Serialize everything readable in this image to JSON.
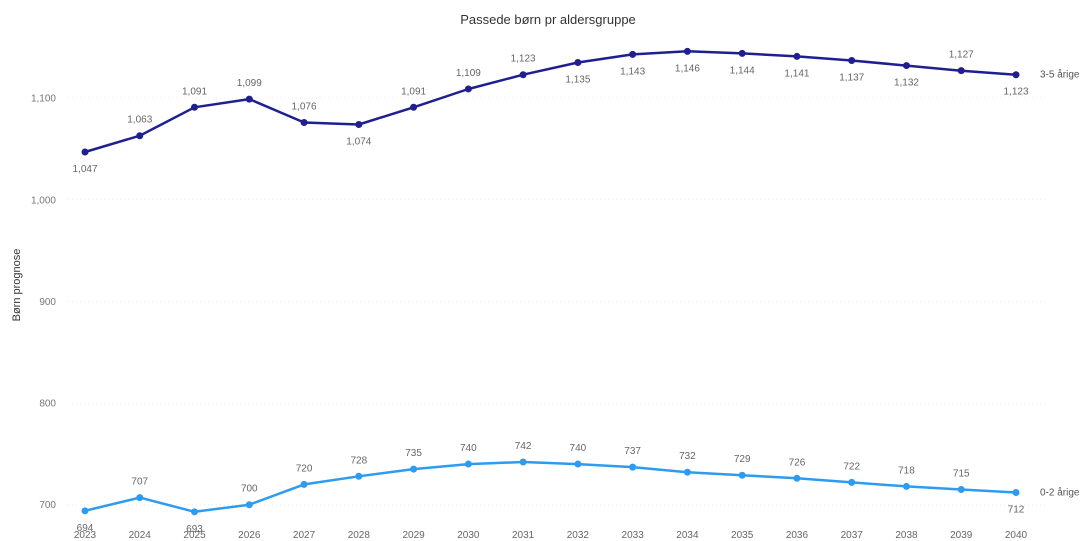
{
  "chart_data": {
    "type": "line",
    "title": "Passede børn pr aldersgruppe",
    "ylabel": "Børn prognose",
    "xlabel": "",
    "x": [
      "2023",
      "2024",
      "2025",
      "2026",
      "2027",
      "2028",
      "2029",
      "2030",
      "2031",
      "2032",
      "2033",
      "2034",
      "2035",
      "2036",
      "2037",
      "2038",
      "2039",
      "2040"
    ],
    "ylim": [
      683,
      1167
    ],
    "yticks": [
      700,
      800,
      900,
      1000,
      1100
    ],
    "ytick_labels": [
      "700",
      "800",
      "900",
      "1,000",
      "1,100"
    ],
    "grid": true,
    "series": [
      {
        "name": "3-5 årige",
        "color": "#1f1f8f",
        "values": [
          1047,
          1063,
          1091,
          1099,
          1076,
          1074,
          1091,
          1109,
          1123,
          1135,
          1143,
          1146,
          1144,
          1141,
          1137,
          1132,
          1127,
          1123
        ],
        "labels": [
          "1,047",
          "1,063",
          "1,091",
          "1,099",
          "1,076",
          "1,074",
          "1,091",
          "1,109",
          "1,123",
          "1,135",
          "1,143",
          "1,146",
          "1,144",
          "1,141",
          "1,137",
          "1,132",
          "1,127",
          "1,123"
        ],
        "label_pos": [
          "below",
          "above",
          "above",
          "above",
          "above",
          "below",
          "above",
          "above",
          "above",
          "below",
          "below",
          "below",
          "below",
          "below",
          "below",
          "below",
          "above",
          "below"
        ]
      },
      {
        "name": "0-2 årige",
        "color": "#2d9cf0",
        "values": [
          694,
          707,
          693,
          700,
          720,
          728,
          735,
          740,
          742,
          740,
          737,
          732,
          729,
          726,
          722,
          718,
          715,
          712
        ],
        "labels": [
          "694",
          "707",
          "693",
          "700",
          "720",
          "728",
          "735",
          "740",
          "742",
          "740",
          "737",
          "732",
          "729",
          "726",
          "722",
          "718",
          "715",
          "712"
        ],
        "label_pos": [
          "below",
          "above",
          "below",
          "above",
          "above",
          "above",
          "above",
          "above",
          "above",
          "above",
          "above",
          "above",
          "above",
          "above",
          "above",
          "above",
          "above",
          "below"
        ]
      }
    ]
  }
}
